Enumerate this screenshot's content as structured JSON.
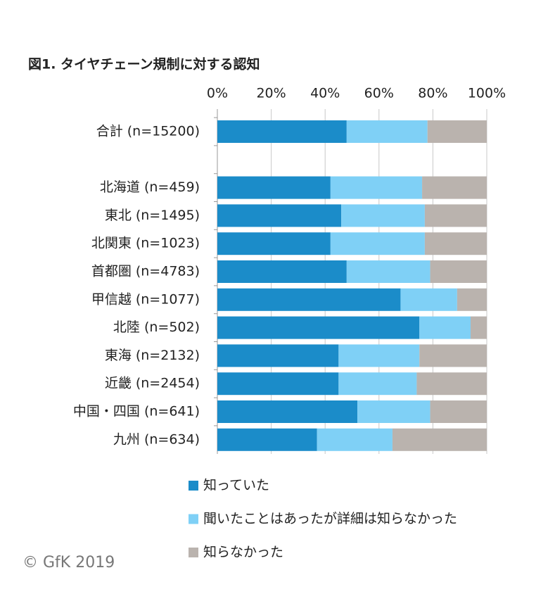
{
  "chart_data": {
    "type": "stacked-barh",
    "title": "図1. タイヤチェーン規制に対する認知",
    "source": "© GfK 2019",
    "categories": [
      "合計 (n=15200)",
      null,
      "北海道 (n=459)",
      "東北 (n=1495)",
      "北関東 (n=1023)",
      "首都圏 (n=4783)",
      "甲信越 (n=1077)",
      "北陸 (n=502)",
      "東海 (n=2132)",
      "近畿 (n=2454)",
      "中国・四国 (n=641)",
      "九州 (n=634)"
    ],
    "series": [
      {
        "name": "知っていた",
        "color": "#1b8cc9",
        "values": [
          48,
          null,
          42,
          46,
          42,
          48,
          68,
          75,
          45,
          45,
          52,
          37
        ]
      },
      {
        "name": "聞いたことはあったが詳細は知らなかった",
        "color": "#7fd0f6",
        "values": [
          30,
          null,
          34,
          31,
          35,
          31,
          21,
          19,
          30,
          29,
          27,
          28
        ]
      },
      {
        "name": "知らなかった",
        "color": "#bab3ae",
        "values": [
          22,
          null,
          24,
          23,
          23,
          21,
          11,
          6,
          25,
          26,
          21,
          35
        ]
      }
    ],
    "xlim": [
      0,
      100
    ],
    "xticks": [
      {
        "value": 0,
        "label": "0%"
      },
      {
        "value": 20,
        "label": "20%"
      },
      {
        "value": 40,
        "label": "40%"
      },
      {
        "value": 60,
        "label": "60%"
      },
      {
        "value": 80,
        "label": "80%"
      },
      {
        "value": 100,
        "label": "100%"
      }
    ],
    "grid": true
  }
}
